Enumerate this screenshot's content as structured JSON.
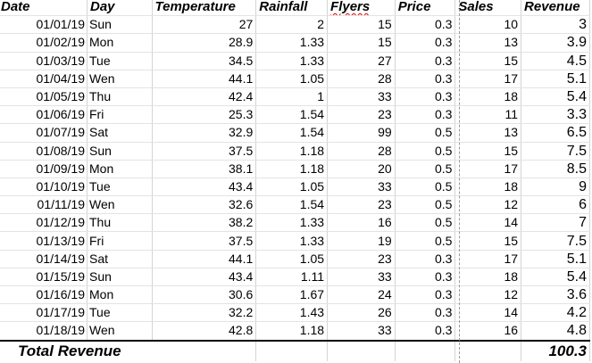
{
  "headers": [
    "Date",
    "Day",
    "Temperature",
    "Rainfall",
    "Flyers",
    "Price",
    "Sales",
    "Revenue"
  ],
  "rows": [
    {
      "date": "01/01/19",
      "day": "Sun",
      "temperature": "27",
      "rainfall": "2",
      "flyers": "15",
      "price": "0.3",
      "sales": "10",
      "revenue": "3"
    },
    {
      "date": "01/02/19",
      "day": "Mon",
      "temperature": "28.9",
      "rainfall": "1.33",
      "flyers": "15",
      "price": "0.3",
      "sales": "13",
      "revenue": "3.9"
    },
    {
      "date": "01/03/19",
      "day": "Tue",
      "temperature": "34.5",
      "rainfall": "1.33",
      "flyers": "27",
      "price": "0.3",
      "sales": "15",
      "revenue": "4.5"
    },
    {
      "date": "01/04/19",
      "day": "Wen",
      "temperature": "44.1",
      "rainfall": "1.05",
      "flyers": "28",
      "price": "0.3",
      "sales": "17",
      "revenue": "5.1"
    },
    {
      "date": "01/05/19",
      "day": "Thu",
      "temperature": "42.4",
      "rainfall": "1",
      "flyers": "33",
      "price": "0.3",
      "sales": "18",
      "revenue": "5.4"
    },
    {
      "date": "01/06/19",
      "day": "Fri",
      "temperature": "25.3",
      "rainfall": "1.54",
      "flyers": "23",
      "price": "0.3",
      "sales": "11",
      "revenue": "3.3"
    },
    {
      "date": "01/07/19",
      "day": "Sat",
      "temperature": "32.9",
      "rainfall": "1.54",
      "flyers": "99",
      "price": "0.5",
      "sales": "13",
      "revenue": "6.5"
    },
    {
      "date": "01/08/19",
      "day": "Sun",
      "temperature": "37.5",
      "rainfall": "1.18",
      "flyers": "28",
      "price": "0.5",
      "sales": "15",
      "revenue": "7.5"
    },
    {
      "date": "01/09/19",
      "day": "Mon",
      "temperature": "38.1",
      "rainfall": "1.18",
      "flyers": "20",
      "price": "0.5",
      "sales": "17",
      "revenue": "8.5"
    },
    {
      "date": "01/10/19",
      "day": "Tue",
      "temperature": "43.4",
      "rainfall": "1.05",
      "flyers": "33",
      "price": "0.5",
      "sales": "18",
      "revenue": "9"
    },
    {
      "date": "01/11/19",
      "day": "Wen",
      "temperature": "32.6",
      "rainfall": "1.54",
      "flyers": "23",
      "price": "0.5",
      "sales": "12",
      "revenue": "6"
    },
    {
      "date": "01/12/19",
      "day": "Thu",
      "temperature": "38.2",
      "rainfall": "1.33",
      "flyers": "16",
      "price": "0.5",
      "sales": "14",
      "revenue": "7"
    },
    {
      "date": "01/13/19",
      "day": "Fri",
      "temperature": "37.5",
      "rainfall": "1.33",
      "flyers": "19",
      "price": "0.5",
      "sales": "15",
      "revenue": "7.5"
    },
    {
      "date": "01/14/19",
      "day": "Sat",
      "temperature": "44.1",
      "rainfall": "1.05",
      "flyers": "23",
      "price": "0.3",
      "sales": "17",
      "revenue": "5.1"
    },
    {
      "date": "01/15/19",
      "day": "Sun",
      "temperature": "43.4",
      "rainfall": "1.11",
      "flyers": "33",
      "price": "0.3",
      "sales": "18",
      "revenue": "5.4"
    },
    {
      "date": "01/16/19",
      "day": "Mon",
      "temperature": "30.6",
      "rainfall": "1.67",
      "flyers": "24",
      "price": "0.3",
      "sales": "12",
      "revenue": "3.6"
    },
    {
      "date": "01/17/19",
      "day": "Tue",
      "temperature": "32.2",
      "rainfall": "1.43",
      "flyers": "26",
      "price": "0.3",
      "sales": "14",
      "revenue": "4.2"
    },
    {
      "date": "01/18/19",
      "day": "Wen",
      "temperature": "42.8",
      "rainfall": "1.18",
      "flyers": "33",
      "price": "0.3",
      "sales": "16",
      "revenue": "4.8"
    }
  ],
  "total": {
    "label": "Total Revenue",
    "value": "100.3"
  },
  "colors": {
    "spell_underline": "#e00000",
    "grid": "#d4d4d4",
    "page_break": "#9a9a9a"
  }
}
